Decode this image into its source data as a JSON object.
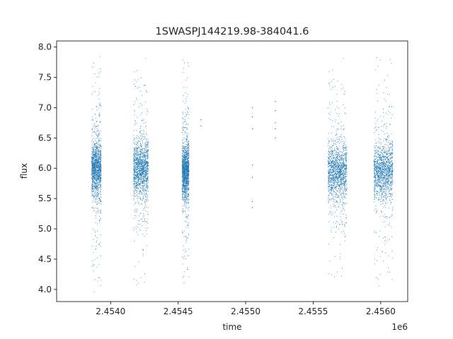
{
  "chart_data": {
    "type": "scatter",
    "title": "1SWASPJ144219.98-384041.6",
    "xlabel": "time",
    "ylabel": "flux",
    "x_offset_label": "1e6",
    "xlim": [
      2.4536,
      2.4562
    ],
    "ylim": [
      3.8,
      8.1
    ],
    "x_ticks": [
      2.454,
      2.4545,
      2.455,
      2.4555,
      2.456
    ],
    "x_tick_labels": [
      "2.4540",
      "2.4545",
      "2.4550",
      "2.4555",
      "2.4560"
    ],
    "y_ticks": [
      4.0,
      4.5,
      5.0,
      5.5,
      6.0,
      6.5,
      7.0,
      7.5,
      8.0
    ],
    "y_tick_labels": [
      "4.0",
      "4.5",
      "5.0",
      "5.5",
      "6.0",
      "6.5",
      "7.0",
      "7.5",
      "8.0"
    ],
    "grid": false,
    "marker_color": "#1f77b4",
    "series": [
      {
        "clusters": [
          {
            "x_range": [
              2.45386,
              2.45393
            ],
            "y_center": 6.0,
            "y_range": [
              3.95,
              7.9
            ],
            "density": "high"
          },
          {
            "x_range": [
              2.45417,
              2.45428
            ],
            "y_center": 6.0,
            "y_range": [
              3.95,
              7.85
            ],
            "density": "high"
          },
          {
            "x_range": [
              2.45453,
              2.45458
            ],
            "y_center": 5.95,
            "y_range": [
              4.1,
              7.8
            ],
            "density": "high"
          },
          {
            "x_range": [
              2.45561,
              2.45575
            ],
            "y_center": 5.95,
            "y_range": [
              4.05,
              7.85
            ],
            "density": "high"
          },
          {
            "x_range": [
              2.45595,
              2.45609
            ],
            "y_center": 5.95,
            "y_range": [
              4.05,
              7.85
            ],
            "density": "high"
          }
        ],
        "sparse_points": [
          [
            2.45467,
            6.8
          ],
          [
            2.45467,
            6.7
          ],
          [
            2.45505,
            7.0
          ],
          [
            2.45505,
            6.85
          ],
          [
            2.45505,
            6.65
          ],
          [
            2.45505,
            6.05
          ],
          [
            2.45505,
            5.85
          ],
          [
            2.45505,
            5.45
          ],
          [
            2.45505,
            5.35
          ],
          [
            2.45522,
            7.1
          ],
          [
            2.45522,
            6.95
          ],
          [
            2.45522,
            6.75
          ],
          [
            2.45522,
            6.65
          ],
          [
            2.45522,
            6.5
          ]
        ]
      }
    ]
  }
}
